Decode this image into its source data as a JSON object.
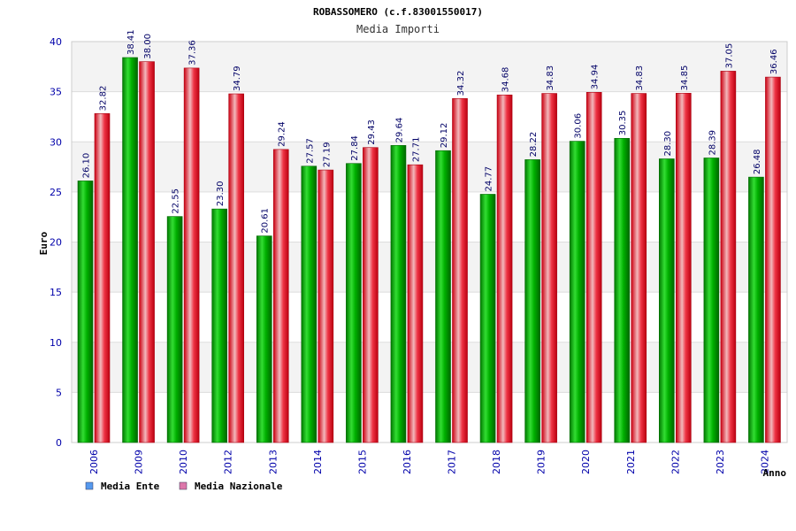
{
  "chart_data": {
    "type": "bar",
    "title": "ROBASSOMERO (c.f.83001550017)",
    "subtitle": "Media Importi",
    "xlabel": "Anno",
    "ylabel": "Euro",
    "ylim": [
      0,
      40
    ],
    "ytick_step": 5,
    "grid": true,
    "legend_position": "bottom-left",
    "categories": [
      "2006",
      "2009",
      "2010",
      "2012",
      "2013",
      "2014",
      "2015",
      "2016",
      "2017",
      "2018",
      "2019",
      "2020",
      "2021",
      "2022",
      "2023",
      "2024"
    ],
    "series": [
      {
        "name": "Media Ente",
        "color": "#00aa00",
        "legend_color": "#5599ee",
        "values": [
          26.1,
          38.41,
          22.55,
          23.3,
          20.61,
          27.57,
          27.84,
          29.64,
          29.12,
          24.77,
          28.22,
          30.06,
          30.35,
          28.3,
          28.39,
          26.48
        ],
        "labels": [
          "26.10",
          "38.41",
          "22.55",
          "23.30",
          "20.61",
          "27.57",
          "27.84",
          "29.64",
          "29.12",
          "24.77",
          "28.22",
          "30.06",
          "30.35",
          "28.30",
          "28.39",
          "26.48"
        ]
      },
      {
        "name": "Media Nazionale",
        "color": "#ee1122",
        "legend_color": "#dd77aa",
        "values": [
          32.82,
          38.0,
          37.36,
          34.79,
          29.24,
          27.19,
          29.43,
          27.71,
          34.32,
          34.68,
          34.83,
          34.94,
          34.83,
          34.85,
          37.05,
          36.46
        ],
        "labels": [
          "32.82",
          "38.00",
          "37.36",
          "34.79",
          "29.24",
          "27.19",
          "29.43",
          "27.71",
          "34.32",
          "34.68",
          "34.83",
          "34.94",
          "34.83",
          "34.85",
          "37.05",
          "36.46"
        ]
      }
    ]
  }
}
